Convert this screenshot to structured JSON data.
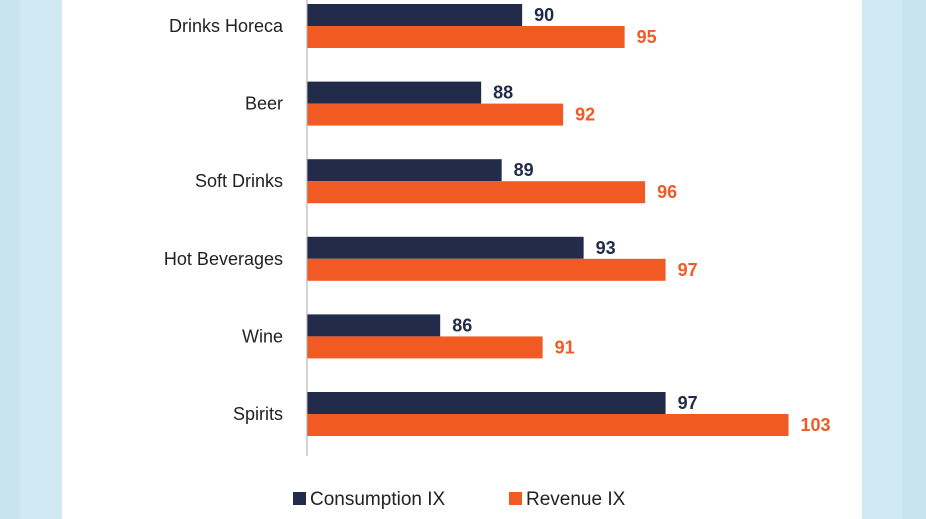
{
  "chart_data": {
    "type": "bar",
    "orientation": "horizontal",
    "title": "",
    "xlabel": "",
    "ylabel": "",
    "categories": [
      "Drinks Horeca",
      "Beer",
      "Soft Drinks",
      "Hot Beverages",
      "Wine",
      "Spirits"
    ],
    "series": [
      {
        "name": "Consumption IX",
        "color": "#222b4a",
        "values": [
          90,
          88,
          89,
          93,
          86,
          97
        ]
      },
      {
        "name": "Revenue IX",
        "color": "#f25a24",
        "values": [
          95,
          92,
          96,
          97,
          91,
          103
        ]
      }
    ],
    "xlim": [
      79.5,
      106
    ],
    "grid": false,
    "legend_position": "bottom",
    "data_labels": true
  }
}
